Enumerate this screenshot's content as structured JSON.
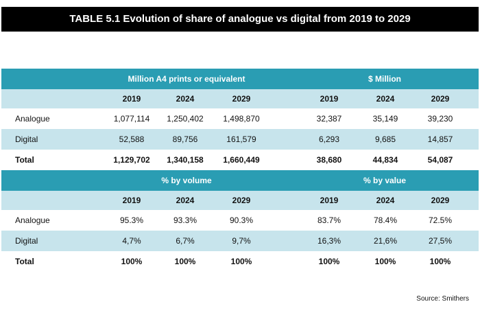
{
  "title": "TABLE 5.1 Evolution of share of analogue vs digital from 2019 to 2029",
  "sections": [
    {
      "headers": [
        "Million A4 prints or equivalent",
        "$ Million"
      ],
      "years": [
        "2019",
        "2024",
        "2029",
        "2019",
        "2024",
        "2029"
      ],
      "rows": [
        [
          "Analogue",
          "1,077,114",
          "1,250,402",
          "1,498,870",
          "32,387",
          "35,149",
          "39,230"
        ],
        [
          "Digital",
          "52,588",
          "89,756",
          "161,579",
          "6,293",
          "9,685",
          "14,857"
        ],
        [
          "Total",
          "1,129,702",
          "1,340,158",
          "1,660,449",
          "38,680",
          "44,834",
          "54,087"
        ]
      ]
    },
    {
      "headers": [
        "% by volume",
        "% by value"
      ],
      "years": [
        "2019",
        "2024",
        "2029",
        "2019",
        "2024",
        "2029"
      ],
      "rows": [
        [
          "Analogue",
          "95.3%",
          "93.3%",
          "90.3%",
          "83.7%",
          "78.4%",
          "72.5%"
        ],
        [
          "Digital",
          "4,7%",
          "6,7%",
          "9,7%",
          "16,3%",
          "21,6%",
          "27,5%"
        ],
        [
          "Total",
          "100%",
          "100%",
          "100%",
          "100%",
          "100%",
          "100%"
        ]
      ]
    }
  ],
  "source": "Source: Smithers"
}
